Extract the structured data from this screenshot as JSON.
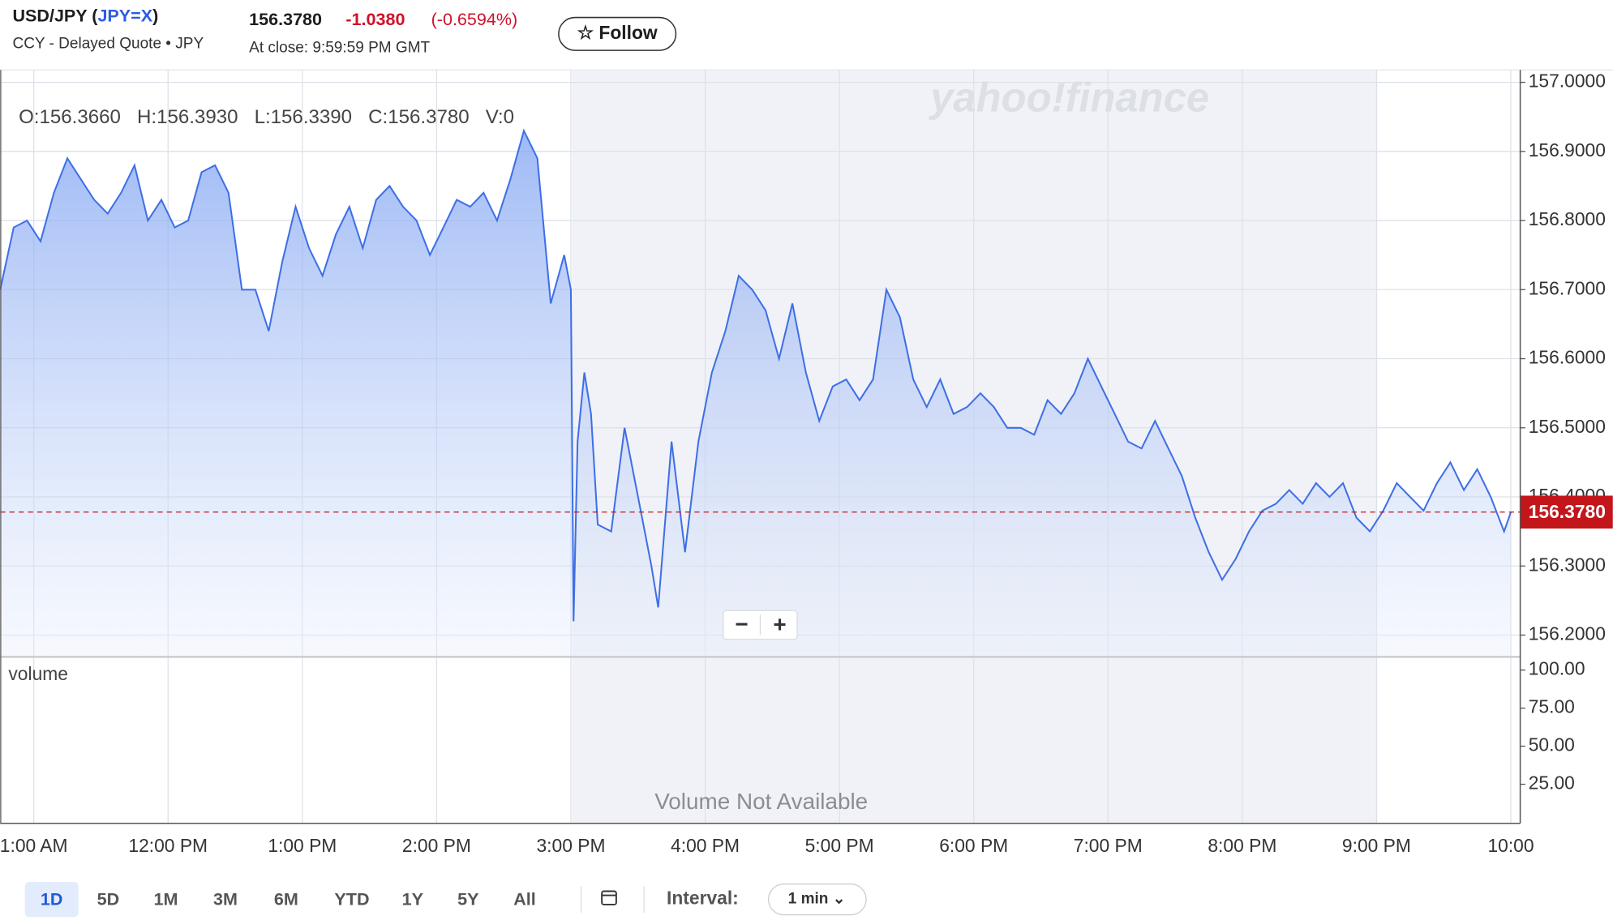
{
  "header": {
    "symbol_parts": [
      "USD/JPY (",
      "JPY=X",
      ")"
    ],
    "subtitle": "CCY - Delayed Quote • JPY",
    "price": "156.3780",
    "change": "-1.0380",
    "change_percent": "(-0.6594%)",
    "close_time": "At close: 9:59:59 PM GMT",
    "follow": "☆ Follow"
  },
  "toolbar": {
    "ranges": [
      "1D",
      "5D",
      "1M",
      "3M",
      "6M",
      "YTD",
      "1Y",
      "5Y",
      "All"
    ],
    "interval_label": "Interval:",
    "interval": "1 min ⌄"
  },
  "zoom": [
    "−",
    "+"
  ],
  "watermark": "yahoo!finance",
  "chart_data": [
    {
      "type": "area",
      "ohlc": "O:156.3660   H:156.3930   L:156.3390   C:156.3780   V:0",
      "xlim": [
        10.75,
        22.07
      ],
      "ylim": [
        156.17,
        157.018
      ],
      "xticks": [
        {
          "value": 11,
          "label": "1:00 AM"
        },
        {
          "value": 12,
          "label": "12:00 PM"
        },
        {
          "value": 13,
          "label": "1:00 PM"
        },
        {
          "value": 14,
          "label": "2:00 PM"
        },
        {
          "value": 15,
          "label": "3:00 PM"
        },
        {
          "value": 16,
          "label": "4:00 PM"
        },
        {
          "value": 17,
          "label": "5:00 PM"
        },
        {
          "value": 18,
          "label": "6:00 PM"
        },
        {
          "value": 19,
          "label": "7:00 PM"
        },
        {
          "value": 20,
          "label": "8:00 PM"
        },
        {
          "value": 21,
          "label": "9:00 PM"
        },
        {
          "value": 22,
          "label": "10:00"
        }
      ],
      "yticks": [
        {
          "value": 157,
          "label": "157.0000"
        },
        {
          "value": 156.9,
          "label": "156.9000"
        },
        {
          "value": 156.8,
          "label": "156.8000"
        },
        {
          "value": 156.7,
          "label": "156.7000"
        },
        {
          "value": 156.6,
          "label": "156.6000"
        },
        {
          "value": 156.5,
          "label": "156.5000"
        },
        {
          "value": 156.4,
          "label": "156.4000"
        },
        {
          "value": 156.3,
          "label": "156.3000"
        },
        {
          "value": 156.2,
          "label": "156.2000"
        }
      ],
      "grid": true,
      "last_price": {
        "value": 156.378,
        "label": "156.3780",
        "color": "#c2161b"
      },
      "series": [
        {
          "color": "#3e6fe6",
          "x": [
            10.75,
            10.85,
            10.95,
            11.05,
            11.15,
            11.25,
            11.35,
            11.45,
            11.55,
            11.65,
            11.75,
            11.85,
            11.95,
            12.05,
            12.15,
            12.25,
            12.35,
            12.45,
            12.55,
            12.65,
            12.75,
            12.85,
            12.95,
            13.05,
            13.15,
            13.25,
            13.35,
            13.45,
            13.55,
            13.65,
            13.75,
            13.85,
            13.95,
            14.05,
            14.15,
            14.25,
            14.35,
            14.45,
            14.55,
            14.65,
            14.75,
            14.85,
            14.95,
            15.0,
            15.02,
            15.05,
            15.1,
            15.15,
            15.2,
            15.3,
            15.4,
            15.5,
            15.6,
            15.65,
            15.75,
            15.85,
            15.95,
            16.05,
            16.15,
            16.25,
            16.35,
            16.45,
            16.55,
            16.65,
            16.75,
            16.85,
            16.95,
            17.05,
            17.15,
            17.25,
            17.35,
            17.45,
            17.55,
            17.65,
            17.75,
            17.85,
            17.95,
            18.05,
            18.15,
            18.25,
            18.35,
            18.45,
            18.55,
            18.65,
            18.75,
            18.85,
            18.95,
            19.05,
            19.15,
            19.25,
            19.35,
            19.45,
            19.55,
            19.65,
            19.75,
            19.85,
            19.95,
            20.05,
            20.15,
            20.25,
            20.35,
            20.45,
            20.55,
            20.65,
            20.75,
            20.85,
            20.95,
            21.05,
            21.15,
            21.25,
            21.35,
            21.45,
            21.55,
            21.65,
            21.75,
            21.85,
            21.95,
            22.0
          ],
          "values": [
            156.7,
            156.79,
            156.8,
            156.77,
            156.84,
            156.89,
            156.86,
            156.83,
            156.81,
            156.84,
            156.88,
            156.8,
            156.83,
            156.79,
            156.8,
            156.87,
            156.88,
            156.84,
            156.7,
            156.7,
            156.64,
            156.74,
            156.82,
            156.76,
            156.72,
            156.78,
            156.82,
            156.76,
            156.83,
            156.85,
            156.82,
            156.8,
            156.75,
            156.79,
            156.83,
            156.82,
            156.84,
            156.8,
            156.86,
            156.93,
            156.89,
            156.68,
            156.75,
            156.7,
            156.22,
            156.48,
            156.58,
            156.52,
            156.36,
            156.35,
            156.5,
            156.4,
            156.3,
            156.24,
            156.48,
            156.32,
            156.48,
            156.58,
            156.64,
            156.72,
            156.7,
            156.67,
            156.6,
            156.68,
            156.58,
            156.51,
            156.56,
            156.57,
            156.54,
            156.57,
            156.7,
            156.66,
            156.57,
            156.53,
            156.57,
            156.52,
            156.53,
            156.55,
            156.53,
            156.5,
            156.5,
            156.49,
            156.54,
            156.52,
            156.55,
            156.6,
            156.56,
            156.52,
            156.48,
            156.47,
            156.51,
            156.47,
            156.43,
            156.37,
            156.32,
            156.28,
            156.31,
            156.35,
            156.38,
            156.39,
            156.41,
            156.39,
            156.42,
            156.4,
            156.42,
            156.37,
            156.35,
            156.38,
            156.42,
            156.4,
            156.38,
            156.42,
            156.45,
            156.41,
            156.44,
            156.4,
            156.35,
            156.378
          ]
        }
      ]
    },
    {
      "type": "bar",
      "label": "volume",
      "message": "Volume Not Available",
      "ylim": [
        0,
        108
      ],
      "yticks": [
        {
          "value": 100,
          "label": "100.00"
        },
        {
          "value": 75,
          "label": "75.00"
        },
        {
          "value": 50,
          "label": "50.00"
        },
        {
          "value": 25,
          "label": "25.00"
        }
      ]
    }
  ]
}
